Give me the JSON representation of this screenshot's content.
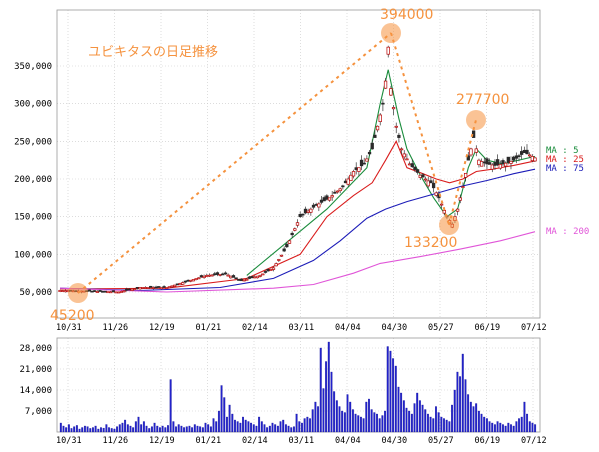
{
  "title": "ユビキタスの日足推移",
  "colors": {
    "title": "#f5923e",
    "annotation": "#f5923e",
    "candle_up": "#b80000",
    "candle_down": "#2a2a2a",
    "ma5": "#1a8c3c",
    "ma25": "#d91c1c",
    "ma75": "#1c1cb8",
    "ma200": "#e055d8",
    "volume": "#2222cc",
    "grid": "#c8c8c8"
  },
  "legend": {
    "ma5": "MA : 5",
    "ma25": "MA : 25",
    "ma75": "MA : 75",
    "ma200": "MA : 200"
  },
  "chart_data": [
    {
      "type": "line",
      "title": "ユビキタスの日足推移",
      "ylim": [
        30000,
        400000
      ],
      "yticks": [
        "50,000",
        "100,000",
        "150,000",
        "200,000",
        "250,000",
        "300,000",
        "350,000"
      ],
      "ytick_values": [
        50000,
        100000,
        150000,
        200000,
        250000,
        300000,
        350000
      ],
      "xticks": [
        "10/31",
        "11/26",
        "12/19",
        "01/21",
        "02/14",
        "03/11",
        "04/04",
        "04/30",
        "05/27",
        "06/19",
        "07/12"
      ],
      "grid": true,
      "legend_position": "right",
      "close_points": [
        [
          0,
          52000
        ],
        [
          12,
          51000
        ],
        [
          22,
          50000
        ],
        [
          30,
          56000
        ],
        [
          40,
          56000
        ],
        [
          55,
          72000
        ],
        [
          62,
          74000
        ],
        [
          68,
          65000
        ],
        [
          75,
          72000
        ],
        [
          80,
          82000
        ],
        [
          85,
          110000
        ],
        [
          90,
          150000
        ],
        [
          96,
          165000
        ],
        [
          101,
          175000
        ],
        [
          106,
          190000
        ],
        [
          110,
          210000
        ],
        [
          114,
          220000
        ],
        [
          117,
          240000
        ],
        [
          119,
          270000
        ],
        [
          121,
          300000
        ],
        [
          122,
          330000
        ],
        [
          123,
          375000
        ],
        [
          124,
          320000
        ],
        [
          126,
          270000
        ],
        [
          128,
          240000
        ],
        [
          131,
          220000
        ],
        [
          135,
          205000
        ],
        [
          139,
          195000
        ],
        [
          142,
          175000
        ],
        [
          145,
          150000
        ],
        [
          147,
          140000
        ],
        [
          149,
          160000
        ],
        [
          151,
          190000
        ],
        [
          153,
          225000
        ],
        [
          155,
          255000
        ],
        [
          157,
          225000
        ],
        [
          160,
          220000
        ],
        [
          163,
          218000
        ],
        [
          166,
          220000
        ],
        [
          168,
          222000
        ],
        [
          170,
          225000
        ],
        [
          172,
          230000
        ],
        [
          174,
          235000
        ],
        [
          176,
          232000
        ],
        [
          178,
          228000
        ]
      ],
      "series": [
        {
          "name": "MA : 5",
          "values": [
            [
              70,
              72000
            ],
            [
              100,
              160000
            ],
            [
              115,
              215000
            ],
            [
              120,
              300000
            ],
            [
              123,
              345000
            ],
            [
              127,
              280000
            ],
            [
              130,
              240000
            ],
            [
              135,
              205000
            ],
            [
              140,
              175000
            ],
            [
              145,
              150000
            ],
            [
              149,
              160000
            ],
            [
              153,
              215000
            ],
            [
              156,
              240000
            ],
            [
              160,
              225000
            ],
            [
              166,
              220000
            ],
            [
              178,
              230000
            ]
          ]
        },
        {
          "name": "MA : 25",
          "values": [
            [
              0,
              54000
            ],
            [
              40,
              55000
            ],
            [
              70,
              68000
            ],
            [
              90,
              100000
            ],
            [
              100,
              150000
            ],
            [
              110,
              178000
            ],
            [
              117,
              195000
            ],
            [
              122,
              225000
            ],
            [
              126,
              250000
            ],
            [
              130,
              215000
            ],
            [
              136,
              207000
            ],
            [
              141,
              200000
            ],
            [
              146,
              195000
            ],
            [
              151,
              200000
            ],
            [
              156,
              210000
            ],
            [
              162,
              213000
            ],
            [
              170,
              218000
            ],
            [
              178,
              224000
            ]
          ]
        },
        {
          "name": "MA : 75",
          "values": [
            [
              0,
              55000
            ],
            [
              30,
              52000
            ],
            [
              60,
              56000
            ],
            [
              80,
              68000
            ],
            [
              95,
              92000
            ],
            [
              105,
              118000
            ],
            [
              115,
              148000
            ],
            [
              122,
              160000
            ],
            [
              130,
              170000
            ],
            [
              140,
              180000
            ],
            [
              150,
              190000
            ],
            [
              160,
              198000
            ],
            [
              170,
              207000
            ],
            [
              178,
              213000
            ]
          ]
        },
        {
          "name": "MA : 200",
          "values": [
            [
              0,
              55000
            ],
            [
              40,
              50000
            ],
            [
              80,
              55000
            ],
            [
              95,
              60000
            ],
            [
              110,
              75000
            ],
            [
              120,
              88000
            ],
            [
              135,
              97000
            ],
            [
              150,
              107000
            ],
            [
              165,
              118000
            ],
            [
              178,
              130000
            ]
          ]
        }
      ],
      "annotations": [
        {
          "label": "45200",
          "x": 0,
          "y": 45200
        },
        {
          "label": "394000",
          "x": 123,
          "y": 394000
        },
        {
          "label": "133200",
          "x": 145,
          "y": 133200
        },
        {
          "label": "277700",
          "x": 154,
          "y": 277700
        }
      ]
    },
    {
      "type": "bar",
      "ylim": [
        0,
        30000
      ],
      "yticks": [
        "7,000",
        "14,000",
        "21,000",
        "28,000"
      ],
      "ytick_values": [
        7000,
        14000,
        21000,
        28000
      ],
      "xticks": [
        "10/31",
        "11/26",
        "12/19",
        "01/21",
        "02/14",
        "03/11",
        "04/04",
        "04/30",
        "05/27",
        "06/19",
        "07/12"
      ],
      "values": [
        3000,
        2000,
        1500,
        2500,
        1200,
        1800,
        2200,
        1000,
        1500,
        2000,
        1800,
        1200,
        1500,
        2000,
        1000,
        1500,
        1300,
        2500,
        1500,
        1200,
        1000,
        1800,
        2500,
        3000,
        4000,
        2500,
        2000,
        1500,
        3500,
        5000,
        2500,
        3500,
        2000,
        1200,
        1800,
        3000,
        2000,
        1500,
        2000,
        1500,
        2200,
        17500,
        3500,
        1800,
        2500,
        2000,
        1500,
        1800,
        2000,
        1500,
        2500,
        2000,
        1800,
        1500,
        3000,
        2500,
        1800,
        4500,
        3500,
        7000,
        15500,
        11500,
        5000,
        9000,
        6000,
        4000,
        3500,
        3000,
        5000,
        4000,
        3500,
        3000,
        2500,
        2000,
        5000,
        3500,
        2500,
        1500,
        2000,
        3000,
        2500,
        2000,
        3500,
        4000,
        2500,
        2000,
        1500,
        1800,
        6000,
        3500,
        3000,
        4500,
        5000,
        4500,
        7500,
        10000,
        8500,
        28000,
        14500,
        23500,
        30000,
        20000,
        13500,
        10500,
        8500,
        7000,
        6500,
        12500,
        10000,
        7500,
        6000,
        5500,
        5000,
        4500,
        10000,
        11000,
        7500,
        6500,
        6000,
        4500,
        5500,
        7000,
        28500,
        27000,
        24500,
        22000,
        15000,
        13000,
        10500,
        8000,
        7000,
        6000,
        9500,
        13000,
        10500,
        9000,
        7500,
        6000,
        5000,
        4500,
        8500,
        6500,
        5000,
        4500,
        4000,
        3500,
        9000,
        14000,
        20000,
        18500,
        26000,
        17500,
        12500,
        10000,
        8500,
        9500,
        7000,
        6000,
        5000,
        4500,
        3500,
        3000,
        2500,
        3500,
        3000,
        2500,
        2000,
        3000,
        2500,
        2000,
        3500,
        4500,
        5000,
        10000,
        6000,
        3500,
        3000,
        2500
      ]
    }
  ]
}
